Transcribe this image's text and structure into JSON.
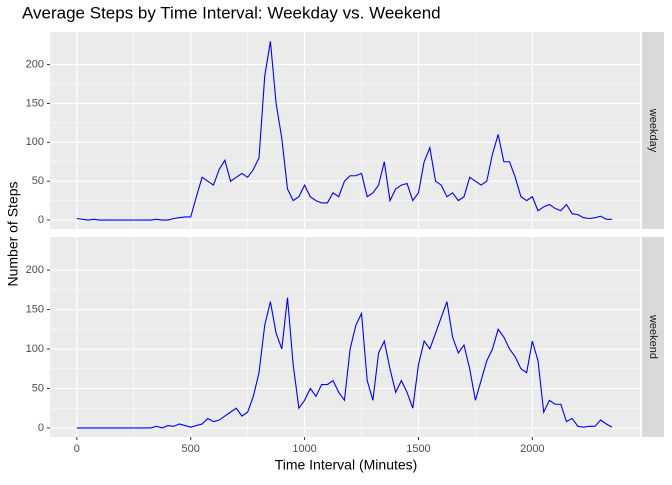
{
  "chart_data": {
    "type": "line",
    "title": "Average Steps by Time Interval: Weekday vs. Weekend",
    "xlabel": "Time Interval (Minutes)",
    "ylabel": "Number of Steps",
    "x": [
      0,
      25,
      50,
      75,
      100,
      125,
      150,
      175,
      200,
      225,
      250,
      275,
      300,
      325,
      350,
      375,
      400,
      425,
      450,
      475,
      500,
      525,
      550,
      575,
      600,
      625,
      650,
      675,
      700,
      725,
      750,
      775,
      800,
      825,
      850,
      875,
      900,
      925,
      950,
      975,
      1000,
      1025,
      1050,
      1075,
      1100,
      1125,
      1150,
      1175,
      1200,
      1225,
      1250,
      1275,
      1300,
      1325,
      1350,
      1375,
      1400,
      1425,
      1450,
      1475,
      1500,
      1525,
      1550,
      1575,
      1600,
      1625,
      1650,
      1675,
      1700,
      1725,
      1750,
      1775,
      1800,
      1825,
      1850,
      1875,
      1900,
      1925,
      1950,
      1975,
      2000,
      2025,
      2050,
      2075,
      2100,
      2125,
      2150,
      2175,
      2200,
      2225,
      2250,
      2275,
      2300,
      2325,
      2350
    ],
    "series": [
      {
        "name": "weekday",
        "color": "#0000ff",
        "values": [
          2,
          1,
          0,
          1,
          0,
          0,
          0,
          0,
          0,
          0,
          0,
          0,
          0,
          0,
          1,
          0,
          0,
          2,
          3,
          4,
          4,
          30,
          55,
          50,
          45,
          65,
          77,
          50,
          55,
          60,
          55,
          65,
          80,
          185,
          230,
          150,
          105,
          40,
          25,
          30,
          45,
          30,
          25,
          22,
          22,
          35,
          30,
          50,
          57,
          57,
          60,
          30,
          35,
          45,
          75,
          25,
          40,
          45,
          47,
          25,
          35,
          75,
          93,
          50,
          45,
          30,
          35,
          25,
          30,
          55,
          50,
          45,
          50,
          85,
          110,
          75,
          75,
          55,
          30,
          25,
          30,
          12,
          17,
          20,
          15,
          12,
          20,
          8,
          7,
          3,
          2,
          3,
          5,
          1,
          1
        ]
      },
      {
        "name": "weekend",
        "color": "#0000ff",
        "values": [
          0,
          0,
          0,
          0,
          0,
          0,
          0,
          0,
          0,
          0,
          0,
          0,
          0,
          0,
          2,
          0,
          3,
          2,
          5,
          3,
          1,
          3,
          5,
          12,
          8,
          10,
          15,
          20,
          25,
          15,
          20,
          40,
          70,
          130,
          160,
          120,
          100,
          165,
          80,
          25,
          35,
          50,
          40,
          55,
          55,
          60,
          45,
          35,
          100,
          130,
          145,
          60,
          35,
          95,
          110,
          75,
          45,
          60,
          45,
          25,
          80,
          110,
          100,
          120,
          140,
          160,
          115,
          95,
          105,
          75,
          35,
          60,
          85,
          100,
          125,
          115,
          100,
          90,
          75,
          70,
          110,
          85,
          20,
          35,
          30,
          30,
          8,
          12,
          2,
          1,
          2,
          2,
          10,
          5,
          1
        ]
      }
    ],
    "xlim": [
      -117.75,
      2472.75
    ],
    "xticks": [
      0,
      500,
      1000,
      1500,
      2000
    ],
    "ylim": [
      -11.5,
      241.9
    ],
    "yticks": [
      0,
      50,
      100,
      150,
      200
    ],
    "grid": true
  }
}
